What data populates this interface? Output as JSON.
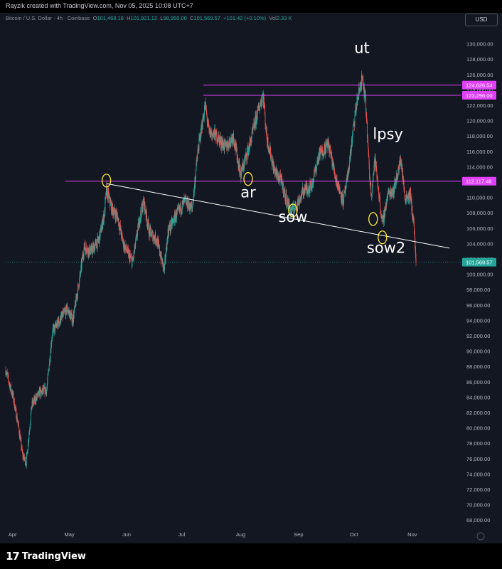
{
  "header": {
    "credit": "Rayzik created with TradingView.com, Nov 05, 2025 10:08 UTC+7"
  },
  "legend": {
    "symbol": "Bitcoin / U.S. Dollar · 4h · Coinbase",
    "o_label": "O",
    "o_value": "101,468.16",
    "h_label": "H",
    "h_value": "101,921.12",
    "l_label": "L",
    "l_value": "98,950.00",
    "c_label": "C",
    "c_value": "101,569.57",
    "change": "+101.42 (+0.10%)",
    "vol_label": "Vol",
    "vol_value": "2.33 K"
  },
  "currency_button": "USD",
  "brand": "TradingView",
  "colors": {
    "background": "#131722",
    "up": "#26a69a",
    "down": "#ef5350",
    "level": "#e040fb",
    "trendline": "#ffffff",
    "marker": "#ffeb3b"
  },
  "chart_data": {
    "type": "candlestick",
    "title": "Bitcoin / U.S. Dollar · 4h · Coinbase",
    "ylim": [
      67000,
      132000
    ],
    "y_ticks": [
      68000,
      70000,
      72000,
      74000,
      76000,
      78000,
      80000,
      82000,
      84000,
      86000,
      88000,
      90000,
      92000,
      94000,
      96000,
      98000,
      100000,
      102000,
      104000,
      106000,
      108000,
      110000,
      112000,
      114000,
      116000,
      118000,
      120000,
      122000,
      124000,
      126000,
      128000,
      130000
    ],
    "x_ticks": [
      {
        "label": "Apr",
        "date": "2025-04-01"
      },
      {
        "label": "May",
        "date": "2025-05-01"
      },
      {
        "label": "Jun",
        "date": "2025-06-01"
      },
      {
        "label": "Jul",
        "date": "2025-07-01"
      },
      {
        "label": "Aug",
        "date": "2025-08-01"
      },
      {
        "label": "Sep",
        "date": "2025-09-01"
      },
      {
        "label": "Oct",
        "date": "2025-10-01"
      },
      {
        "label": "Nov",
        "date": "2025-11-01"
      }
    ],
    "xlim": [
      "2025-03-29",
      "2025-11-28"
    ],
    "price_path": [
      [
        "2025-03-29",
        87500
      ],
      [
        "2025-04-02",
        84000
      ],
      [
        "2025-04-05",
        80000
      ],
      [
        "2025-04-07",
        76500
      ],
      [
        "2025-04-09",
        75500
      ],
      [
        "2025-04-12",
        83000
      ],
      [
        "2025-04-16",
        84500
      ],
      [
        "2025-04-20",
        85000
      ],
      [
        "2025-04-23",
        92500
      ],
      [
        "2025-04-27",
        94000
      ],
      [
        "2025-05-01",
        95500
      ],
      [
        "2025-05-04",
        94000
      ],
      [
        "2025-05-08",
        100000
      ],
      [
        "2025-05-10",
        103500
      ],
      [
        "2025-05-14",
        103000
      ],
      [
        "2025-05-18",
        104500
      ],
      [
        "2025-05-21",
        108000
      ],
      [
        "2025-05-22",
        111000
      ],
      [
        "2025-05-25",
        108500
      ],
      [
        "2025-05-28",
        107500
      ],
      [
        "2025-05-31",
        104000
      ],
      [
        "2025-06-05",
        101500
      ],
      [
        "2025-06-09",
        107500
      ],
      [
        "2025-06-11",
        109500
      ],
      [
        "2025-06-14",
        105500
      ],
      [
        "2025-06-18",
        104500
      ],
      [
        "2025-06-22",
        100500
      ],
      [
        "2025-06-24",
        105500
      ],
      [
        "2025-06-28",
        107500
      ],
      [
        "2025-07-03",
        109500
      ],
      [
        "2025-07-07",
        108500
      ],
      [
        "2025-07-10",
        116000
      ],
      [
        "2025-07-14",
        122000
      ],
      [
        "2025-07-16",
        118500
      ],
      [
        "2025-07-20",
        118000
      ],
      [
        "2025-07-25",
        116500
      ],
      [
        "2025-07-29",
        118000
      ],
      [
        "2025-08-02",
        113000
      ],
      [
        "2025-08-07",
        117000
      ],
      [
        "2025-08-11",
        121000
      ],
      [
        "2025-08-14",
        123500
      ],
      [
        "2025-08-16",
        117800
      ],
      [
        "2025-08-20",
        113500
      ],
      [
        "2025-08-24",
        112000
      ],
      [
        "2025-08-26",
        110000
      ],
      [
        "2025-08-29",
        108200
      ],
      [
        "2025-09-01",
        109000
      ],
      [
        "2025-09-05",
        111000
      ],
      [
        "2025-09-09",
        111500
      ],
      [
        "2025-09-13",
        115500
      ],
      [
        "2025-09-18",
        117000
      ],
      [
        "2025-09-22",
        112500
      ],
      [
        "2025-09-26",
        109500
      ],
      [
        "2025-09-28",
        112000
      ],
      [
        "2025-10-01",
        118000
      ],
      [
        "2025-10-03",
        122000
      ],
      [
        "2025-10-06",
        125500
      ],
      [
        "2025-10-08",
        122500
      ],
      [
        "2025-10-10",
        113000
      ],
      [
        "2025-10-11",
        110500
      ],
      [
        "2025-10-13",
        115000
      ],
      [
        "2025-10-16",
        108500
      ],
      [
        "2025-10-17",
        106500
      ],
      [
        "2025-10-20",
        110500
      ],
      [
        "2025-10-23",
        111000
      ],
      [
        "2025-10-27",
        115000
      ],
      [
        "2025-10-29",
        110000
      ],
      [
        "2025-11-01",
        110300
      ],
      [
        "2025-11-03",
        106000
      ],
      [
        "2025-11-04",
        101569.57
      ]
    ],
    "levels": [
      {
        "price": 124626.54,
        "label": "124,626.54",
        "from": "2025-07-13"
      },
      {
        "price": 123296.0,
        "label": "123,296.00",
        "from": "2025-07-13"
      },
      {
        "price": 112117.48,
        "label": "112,117.48",
        "from": "2025-04-30"
      }
    ],
    "trendline": {
      "start": [
        "2025-05-22",
        111800
      ],
      "end": [
        "2025-11-22",
        103400
      ]
    },
    "last_price": {
      "price": 101569.57,
      "label": "101,569.57"
    },
    "annotations": [
      {
        "text": "ut",
        "date": "2025-10-06",
        "price": 128800
      },
      {
        "text": "lpsy",
        "date": "2025-10-20",
        "price": 117600
      },
      {
        "text": "ar",
        "date": "2025-08-06",
        "price": 110000
      },
      {
        "text": "sow",
        "date": "2025-08-30",
        "price": 106800
      },
      {
        "text": "sow2",
        "date": "2025-10-19",
        "price": 102800
      }
    ],
    "markers": [
      {
        "date": "2025-05-22",
        "price": 112200
      },
      {
        "date": "2025-08-06",
        "price": 112400
      },
      {
        "date": "2025-08-30",
        "price": 108300
      },
      {
        "date": "2025-10-12",
        "price": 107200
      },
      {
        "date": "2025-10-17",
        "price": 104800
      }
    ]
  }
}
